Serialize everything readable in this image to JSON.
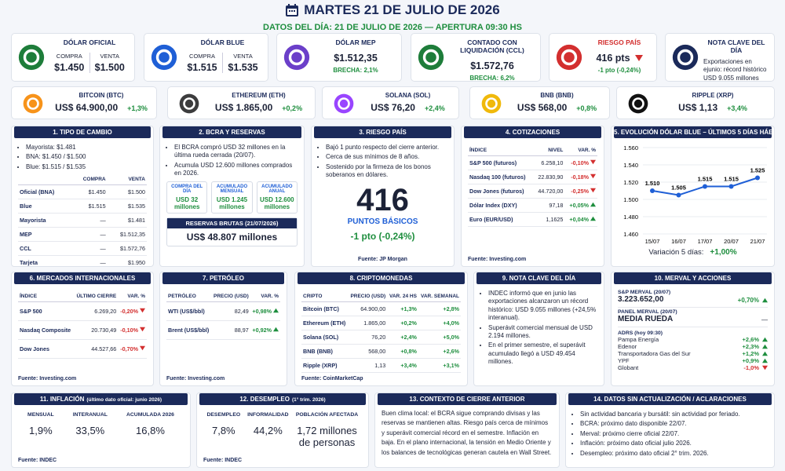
{
  "header": {
    "title": "MARTES 21 DE JULIO DE 2026",
    "subtitle": "DATOS DEL DÍA: 21 DE JULIO DE 2026 — APERTURA 09:30 HS"
  },
  "cards": [
    {
      "title": "DÓLAR OFICIAL",
      "color": "#1e7d3a",
      "items": [
        {
          "label": "COMPRA",
          "value": "$1.450"
        },
        {
          "label": "VENTA",
          "value": "$1.500"
        }
      ]
    },
    {
      "title": "DÓLAR BLUE",
      "color": "#1f5fd6",
      "items": [
        {
          "label": "COMPRA",
          "value": "$1.515"
        },
        {
          "label": "VENTA",
          "value": "$1.535"
        }
      ]
    },
    {
      "title": "DÓLAR MEP",
      "color": "#6b3fc9",
      "value": "$1.512,35",
      "note": "BRECHA: 2,1%"
    },
    {
      "title": "CONTADO CON LIQUIDACIÓN (CCL)",
      "color": "#1e7d3a",
      "value": "$1.572,76",
      "note": "BRECHA: 6,2%"
    },
    {
      "title": "RIESGO PAÍS",
      "color": "#d32f2f",
      "value": "416 pts",
      "trend": "down",
      "note": "-1 pto (-0,24%)"
    },
    {
      "title": "NOTA CLAVE DEL DÍA",
      "color": "#1b2a5a",
      "text": "Exportaciones en ejunio: récord histórico USD 9.055 millones"
    }
  ],
  "crypto_cards": [
    {
      "name": "BITCOIN (BTC)",
      "color": "#f7931a",
      "price": "US$ 64.900,00",
      "change": "+1,3%"
    },
    {
      "name": "ETHEREUM (ETH)",
      "color": "#3c3c3d",
      "price": "US$ 1.865,00",
      "change": "+0,2%"
    },
    {
      "name": "SOLANA (SOL)",
      "color": "#9945ff",
      "price": "US$ 76,20",
      "change": "+2,4%"
    },
    {
      "name": "BNB (BNB)",
      "color": "#f0b90b",
      "price": "US$ 568,00",
      "change": "+0,8%"
    },
    {
      "name": "RIPPLE (XRP)",
      "color": "#111111",
      "price": "US$ 1,13",
      "change": "+3,4%"
    }
  ],
  "panels": [
    {
      "title": "1. TIPO DE CAMBIO",
      "bullets": [
        "Mayorista: $1.481",
        "BNA: $1.450 / $1.500",
        "Blue: $1.515 / $1.535"
      ],
      "table": {
        "header": [
          "COMPRA",
          "VENTA"
        ],
        "rows": [
          [
            "Oficial (BNA)",
            "$1.450",
            "$1.500"
          ],
          [
            "Blue",
            "$1.515",
            "$1.535"
          ],
          [
            "Mayorista",
            "—",
            "$1.481"
          ],
          [
            "MEP",
            "—",
            "$1.512,35"
          ],
          [
            "CCL",
            "—",
            "$1.572,76"
          ],
          [
            "Tarjeta",
            "—",
            "$1.950"
          ]
        ]
      }
    },
    {
      "title": "2. BCRA Y RESERVAS",
      "bullets": [
        "El BCRA compró USD 32 millones en la última rueda cerrada (20/07).",
        "Acumula USD 12.600 millones comprados en 2026."
      ],
      "boxes": [
        {
          "label": "COMPRA DEL DÍA",
          "value": "USD 32 millones"
        },
        {
          "label": "ACUMULADO MENSUAL",
          "value": "USD 1.245 millones"
        },
        {
          "label": "ACUMULADO ANUAL",
          "value": "USD 12.600 millones"
        }
      ],
      "highlight": {
        "label": "RESERVAS BRUTAS (21/07/2026)",
        "value": "US$ 48.807 millones"
      }
    },
    {
      "title": "3. RIESGO PAÍS",
      "bullets": [
        "Bajó 1 punto respecto del cierre anterior.",
        "Cerca de sus mínimos de 8 años.",
        "Sostenido por la firmeza de los bonos soberanos en dólares."
      ],
      "big": {
        "value": "416",
        "unit": "PUNTOS BÁSICOS",
        "change": "-1 pto (-0,24%)"
      },
      "source": "Fuente: JP Morgan"
    },
    {
      "title": "4. COTIZACIONES",
      "arrows": true,
      "table": {
        "header": [
          "ÍNDICE",
          "NIVEL",
          "VAR. %"
        ],
        "rows": [
          [
            "S&P 500 (futuros)",
            "6.258,10",
            "-0,10%"
          ],
          [
            "Nasdaq 100 (futuros)",
            "22.830,90",
            "-0,18%"
          ],
          [
            "Dow Jones (futuros)",
            "44.720,00",
            "-0,25%"
          ],
          [
            "Dólar Index (DXY)",
            "97,18",
            "+0,05%"
          ],
          [
            "Euro (EUR/USD)",
            "1,1625",
            "+0,04%"
          ]
        ]
      },
      "source": "Fuente: Investing.com"
    },
    {
      "title": "6. MERCADOS INTERNACIONALES",
      "arrows": true,
      "table": {
        "header": [
          "ÍNDICE",
          "ÚLTIMO CIERRE",
          "VAR. %"
        ],
        "rows": [
          [
            "S&P 500",
            "6.269,20",
            "-0,20%"
          ],
          [
            "Nasdaq Composite",
            "20.730,49",
            "-0,10%"
          ],
          [
            "Dow Jones",
            "44.527,66",
            "-0,70%"
          ]
        ]
      },
      "source": "Fuente: Investing.com"
    },
    {
      "title": "7. PETRÓLEO",
      "arrows": true,
      "table": {
        "header": [
          "PETRÓLEO",
          "PRECIO (USD)",
          "VAR. %"
        ],
        "rows": [
          [
            "WTI (US$/bbl)",
            "82,49",
            "+0,98%"
          ],
          [
            "Brent (US$/bbl)",
            "88,97",
            "+0,92%"
          ]
        ]
      },
      "source": "Fuente: Investing.com"
    },
    {
      "title": "8. CRIPTOMONEDAS",
      "table": {
        "header": [
          "CRIPTO",
          "PRECIO (USD)",
          "VAR. 24 HS",
          "VAR. SEMANAL"
        ],
        "rows": [
          [
            "Bitcoin (BTC)",
            "64.900,00",
            "+1,3%",
            "+2,8%"
          ],
          [
            "Ethereum (ETH)",
            "1.865,00",
            "+0,2%",
            "+4,0%"
          ],
          [
            "Solana (SOL)",
            "76,20",
            "+2,4%",
            "+5,0%"
          ],
          [
            "BNB (BNB)",
            "568,00",
            "+0,8%",
            "+2,6%"
          ],
          [
            "Ripple (XRP)",
            "1,13",
            "+3,4%",
            "+3,1%"
          ]
        ]
      },
      "source": "Fuente: CoinMarketCap"
    },
    {
      "title": "9. NOTA CLAVE DEL DÍA",
      "bullets": [
        "INDEC informó que en junio las exportaciones alcanzaron un récord histórico: USD 9.055 millones (+24,5% interanual).",
        "Superávit comercial mensual de USD 2.194 millones.",
        "En el primer semestre, el superávit acumulado llegó a USD 49.454 millones."
      ]
    },
    {
      "title": "10. MERVAL Y ACCIONES",
      "arrows": true,
      "groups": [
        {
          "label": "S&P MERVAL (20/07)",
          "value": "3.223.652,00",
          "change": "+0,70%"
        },
        {
          "label": "PANEL MERVAL (20/07)",
          "value": "MEDIA RUEDA",
          "change": "—"
        }
      ],
      "adrs": {
        "label": "ADRS (hoy 09:30)",
        "rows": [
          [
            "Pampa Energía",
            "+2,6%"
          ],
          [
            "Edenor",
            "+2,3%"
          ],
          [
            "Transportadora Gas del Sur",
            "+1,2%"
          ],
          [
            "YPF",
            "+0,9%"
          ],
          [
            "Globant",
            "-1,0%"
          ]
        ]
      }
    },
    {
      "title": "11. INFLACIÓN",
      "title_note": "(último dato oficial: junio 2026)",
      "stats": [
        {
          "label": "MENSUAL",
          "value": "1,9%"
        },
        {
          "label": "INTERANUAL",
          "value": "33,5%"
        },
        {
          "label": "ACUMULADA 2026",
          "value": "16,8%"
        }
      ],
      "source": "Fuente: INDEC"
    },
    {
      "title": "12. DESEMPLEO",
      "title_note": "(1° trim. 2026)",
      "stats": [
        {
          "label": "DESEMPLEO",
          "value": "7,8%"
        },
        {
          "label": "INFORMALIDAD",
          "value": "44,2%"
        },
        {
          "label": "POBLACIÓN AFECTADA",
          "value": "1,72 millones de personas"
        }
      ],
      "source": "Fuente: INDEC"
    },
    {
      "title": "13. CONTEXTO DE CIERRE ANTERIOR",
      "text": "Buen clima local: el BCRA sigue comprando divisas y las reservas se mantienen altas. Riesgo país cerca de mínimos y superávit comercial récord en el semestre. Inflación en baja. En el plano internacional, la tensión en Medio Oriente y los balances de tecnológicas generan cautela en Wall Street."
    },
    {
      "title": "14. DATOS SIN ACTUALIZACIÓN / ACLARACIONES",
      "bullets": [
        "Sin actividad bancaria y bursátil: sin actividad por feriado.",
        "BCRA: próximo dato disponible 22/07.",
        "Merval: próximo cierre oficial 22/07.",
        "Inflación: próximo dato oficial julio 2026.",
        "Desempleo: próximo dato oficial 2° trim. 2026."
      ]
    }
  ],
  "chart_data": {
    "type": "line",
    "title": "5. EVOLUCIÓN DÓLAR BLUE – ÚLTIMOS 5 DÍAS HÁBILES",
    "categories": [
      "15/07",
      "16/07",
      "17/07",
      "20/07",
      "21/07"
    ],
    "values": [
      1.51,
      1.505,
      1.515,
      1.515,
      1.525
    ],
    "value_labels": [
      "1.510",
      "1.505",
      "1.515",
      "1.515",
      "1.525"
    ],
    "color": "#1f5fd6",
    "ylim": [
      1.46,
      1.56
    ],
    "yticks": [
      {
        "value": 1.46,
        "label": "1.460"
      },
      {
        "value": 1.48,
        "label": "1.480"
      },
      {
        "value": 1.5,
        "label": "1.500"
      },
      {
        "value": 1.52,
        "label": "1.520"
      },
      {
        "value": 1.54,
        "label": "1.540"
      },
      {
        "value": 1.56,
        "label": "1.560"
      }
    ],
    "grid": true,
    "footnote": {
      "label": "Variación 5 días:",
      "value": "+1,00%"
    }
  }
}
